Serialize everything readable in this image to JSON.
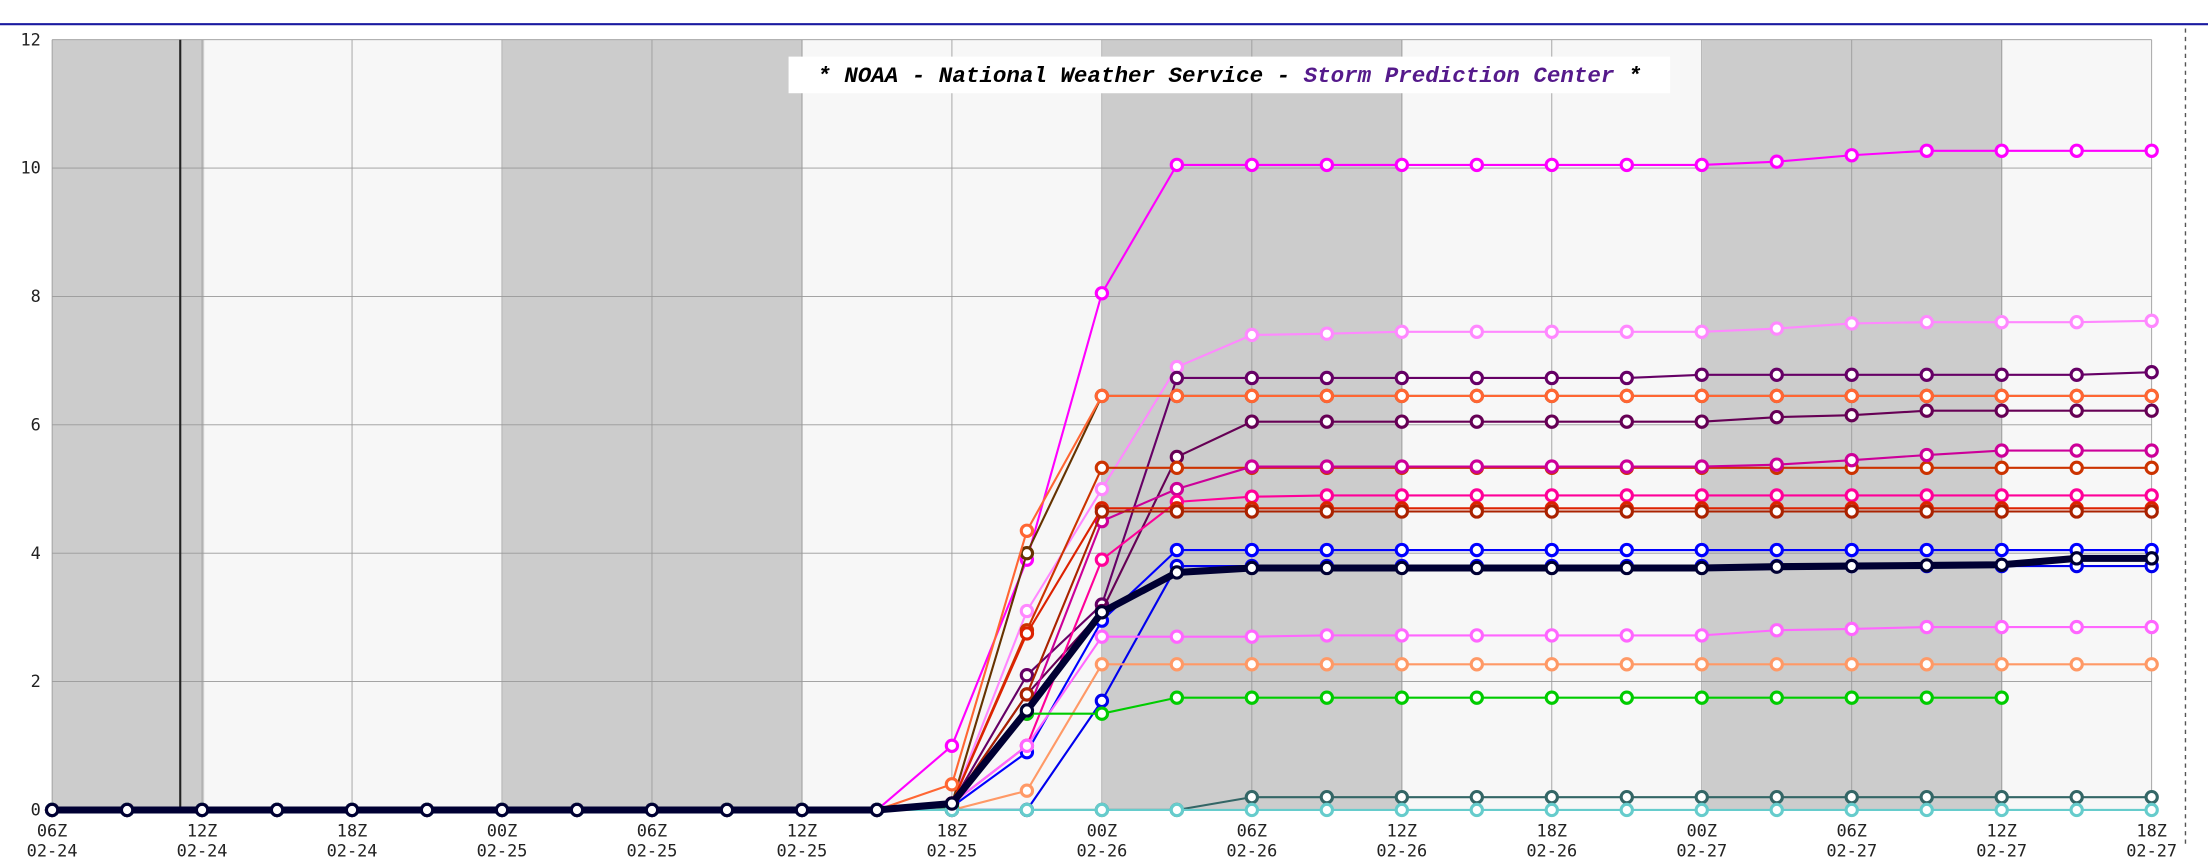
{
  "chart_data": {
    "type": "line",
    "title_parts": [
      {
        "text": "* NOAA - National Weather Service - ",
        "color": "#000000"
      },
      {
        "text": "Storm Prediction Center",
        "color": "#551a8b"
      },
      {
        "text": " *",
        "color": "#000000"
      }
    ],
    "categories": [
      "06Z 02-24",
      null,
      "12Z 02-24",
      null,
      "18Z 02-24",
      null,
      "00Z 02-25",
      null,
      "06Z 02-25",
      null,
      "12Z 02-25",
      null,
      "18Z 02-25",
      null,
      "00Z 02-26",
      null,
      "06Z 02-26",
      null,
      "12Z 02-26",
      null,
      "18Z 02-26",
      null,
      "00Z 02-27",
      null,
      "06Z 02-27",
      null,
      "12Z 02-27",
      null,
      "18Z 02-27"
    ],
    "ylim": [
      0,
      12
    ],
    "yticks": [
      0,
      2,
      4,
      6,
      8,
      10,
      12
    ],
    "grid": true,
    "series": [
      {
        "color": "#ff00ff",
        "values": [
          0,
          0,
          0,
          0,
          0,
          0,
          0,
          0,
          0,
          0,
          0,
          0,
          1.0,
          3.9,
          8.05,
          10.05,
          10.05,
          10.05,
          10.05,
          10.05,
          10.05,
          10.05,
          10.05,
          10.1,
          10.2,
          10.27,
          10.27,
          10.27,
          10.27
        ]
      },
      {
        "color": "#ff88ff",
        "values": [
          0,
          0,
          0,
          0,
          0,
          0,
          0,
          0,
          0,
          0,
          0,
          0,
          0.1,
          3.1,
          5.0,
          6.9,
          7.4,
          7.42,
          7.45,
          7.45,
          7.45,
          7.45,
          7.45,
          7.5,
          7.58,
          7.6,
          7.6,
          7.6,
          7.62
        ]
      },
      {
        "color": "#660066",
        "values": [
          0,
          0,
          0,
          0,
          0,
          0,
          0,
          0,
          0,
          0,
          0,
          0,
          0.1,
          2.1,
          3.2,
          6.73,
          6.73,
          6.73,
          6.73,
          6.73,
          6.73,
          6.73,
          6.78,
          6.78,
          6.78,
          6.78,
          6.78,
          6.78,
          6.82
        ]
      },
      {
        "color": "#663300",
        "values": [
          0,
          0,
          0,
          0,
          0,
          0,
          0,
          0,
          0,
          0,
          0,
          0,
          0.1,
          4.0,
          6.45,
          6.45,
          6.45,
          6.45,
          6.45,
          6.45,
          6.45,
          6.45,
          6.45,
          6.45,
          6.45,
          6.45,
          6.45,
          6.45,
          6.45
        ]
      },
      {
        "color": "#ff6633",
        "values": [
          0,
          0,
          0,
          0,
          0,
          0,
          0,
          0,
          0,
          0,
          0,
          0,
          0.4,
          4.35,
          6.45,
          6.45,
          6.45,
          6.45,
          6.45,
          6.45,
          6.45,
          6.45,
          6.45,
          6.45,
          6.45,
          6.45,
          6.45,
          6.45,
          6.45
        ]
      },
      {
        "color": "#660055",
        "values": [
          0,
          0,
          0,
          0,
          0,
          0,
          0,
          0,
          0,
          0,
          0,
          0,
          0.1,
          1.8,
          3.1,
          5.5,
          6.05,
          6.05,
          6.05,
          6.05,
          6.05,
          6.05,
          6.05,
          6.12,
          6.15,
          6.22,
          6.22,
          6.22,
          6.22
        ]
      },
      {
        "color": "#cc3300",
        "values": [
          0,
          0,
          0,
          0,
          0,
          0,
          0,
          0,
          0,
          0,
          0,
          0,
          0.1,
          2.8,
          5.33,
          5.33,
          5.33,
          5.33,
          5.33,
          5.33,
          5.33,
          5.33,
          5.33,
          5.33,
          5.33,
          5.33,
          5.33,
          5.33,
          5.33
        ]
      },
      {
        "color": "#cc0099",
        "values": [
          0,
          0,
          0,
          0,
          0,
          0,
          0,
          0,
          0,
          0,
          0,
          0,
          0.1,
          1.5,
          4.5,
          5.0,
          5.35,
          5.35,
          5.35,
          5.35,
          5.35,
          5.35,
          5.35,
          5.38,
          5.45,
          5.53,
          5.6,
          5.6,
          5.6
        ]
      },
      {
        "color": "#ff0099",
        "values": [
          0,
          0,
          0,
          0,
          0,
          0,
          0,
          0,
          0,
          0,
          0,
          0,
          0.1,
          1.0,
          3.9,
          4.8,
          4.88,
          4.9,
          4.9,
          4.9,
          4.9,
          4.9,
          4.9,
          4.9,
          4.9,
          4.9,
          4.9,
          4.9,
          4.9
        ]
      },
      {
        "color": "#dd2200",
        "values": [
          0,
          0,
          0,
          0,
          0,
          0,
          0,
          0,
          0,
          0,
          0,
          0,
          0.1,
          2.75,
          4.7,
          4.7,
          4.7,
          4.7,
          4.7,
          4.7,
          4.7,
          4.7,
          4.7,
          4.7,
          4.7,
          4.7,
          4.7,
          4.7,
          4.7
        ]
      },
      {
        "color": "#aa2200",
        "values": [
          0,
          0,
          0,
          0,
          0,
          0,
          0,
          0,
          0,
          0,
          0,
          0,
          0.1,
          1.8,
          4.65,
          4.65,
          4.65,
          4.65,
          4.65,
          4.65,
          4.65,
          4.65,
          4.65,
          4.65,
          4.65,
          4.65,
          4.65,
          4.65,
          4.65
        ]
      },
      {
        "color": "#0000ff",
        "values": [
          0,
          0,
          0,
          0,
          0,
          0,
          0,
          0,
          0,
          0,
          0,
          0,
          0.05,
          0.9,
          2.95,
          4.05,
          4.05,
          4.05,
          4.05,
          4.05,
          4.05,
          4.05,
          4.05,
          4.05,
          4.05,
          4.05,
          4.05,
          4.05,
          4.05
        ]
      },
      {
        "color": "#0000ee",
        "values": [
          0,
          0,
          0,
          0,
          0,
          0,
          0,
          0,
          0,
          0,
          0,
          0,
          0,
          0,
          1.7,
          3.8,
          3.8,
          3.8,
          3.8,
          3.8,
          3.8,
          3.8,
          3.8,
          3.8,
          3.8,
          3.8,
          3.8,
          3.8,
          3.8
        ]
      },
      {
        "color": "#ff66ff",
        "values": [
          0,
          0,
          0,
          0,
          0,
          0,
          0,
          0,
          0,
          0,
          0,
          0,
          0.1,
          1.0,
          2.7,
          2.7,
          2.7,
          2.72,
          2.72,
          2.72,
          2.72,
          2.72,
          2.72,
          2.8,
          2.82,
          2.85,
          2.85,
          2.85,
          2.85
        ]
      },
      {
        "color": "#ff9966",
        "values": [
          0,
          0,
          0,
          0,
          0,
          0,
          0,
          0,
          0,
          0,
          0,
          0,
          0,
          0.3,
          2.27,
          2.27,
          2.27,
          2.27,
          2.27,
          2.27,
          2.27,
          2.27,
          2.27,
          2.27,
          2.27,
          2.27,
          2.27,
          2.27,
          2.27
        ]
      },
      {
        "color": "#00cc00",
        "values": [
          0,
          0,
          0,
          0,
          0,
          0,
          0,
          0,
          0,
          0,
          0,
          0,
          0.05,
          1.5,
          1.5,
          1.75,
          1.75,
          1.75,
          1.75,
          1.75,
          1.75,
          1.75,
          1.75,
          1.75,
          1.75,
          1.75,
          1.75,
          null,
          null
        ]
      },
      {
        "color": "#336666",
        "values": [
          0,
          0,
          0,
          0,
          0,
          0,
          0,
          0,
          0,
          0,
          0,
          0,
          0,
          0,
          0,
          0,
          0.2,
          0.2,
          0.2,
          0.2,
          0.2,
          0.2,
          0.2,
          0.2,
          0.2,
          0.2,
          0.2,
          0.2,
          0.2
        ]
      },
      {
        "color": "#66cccc",
        "values": [
          0,
          0,
          0,
          0,
          0,
          0,
          0,
          0,
          0,
          0,
          0,
          0,
          0,
          0,
          0,
          0,
          0,
          0,
          0,
          0,
          0,
          0,
          0,
          0,
          0,
          0,
          0,
          0,
          0
        ]
      },
      {
        "color": "#000033",
        "width": 5,
        "values": [
          0,
          0,
          0,
          0,
          0,
          0,
          0,
          0,
          0,
          0,
          0,
          0,
          0.1,
          1.55,
          3.08,
          3.7,
          3.77,
          3.77,
          3.77,
          3.77,
          3.77,
          3.77,
          3.77,
          3.79,
          3.8,
          3.81,
          3.82,
          3.92,
          3.92
        ]
      }
    ]
  }
}
